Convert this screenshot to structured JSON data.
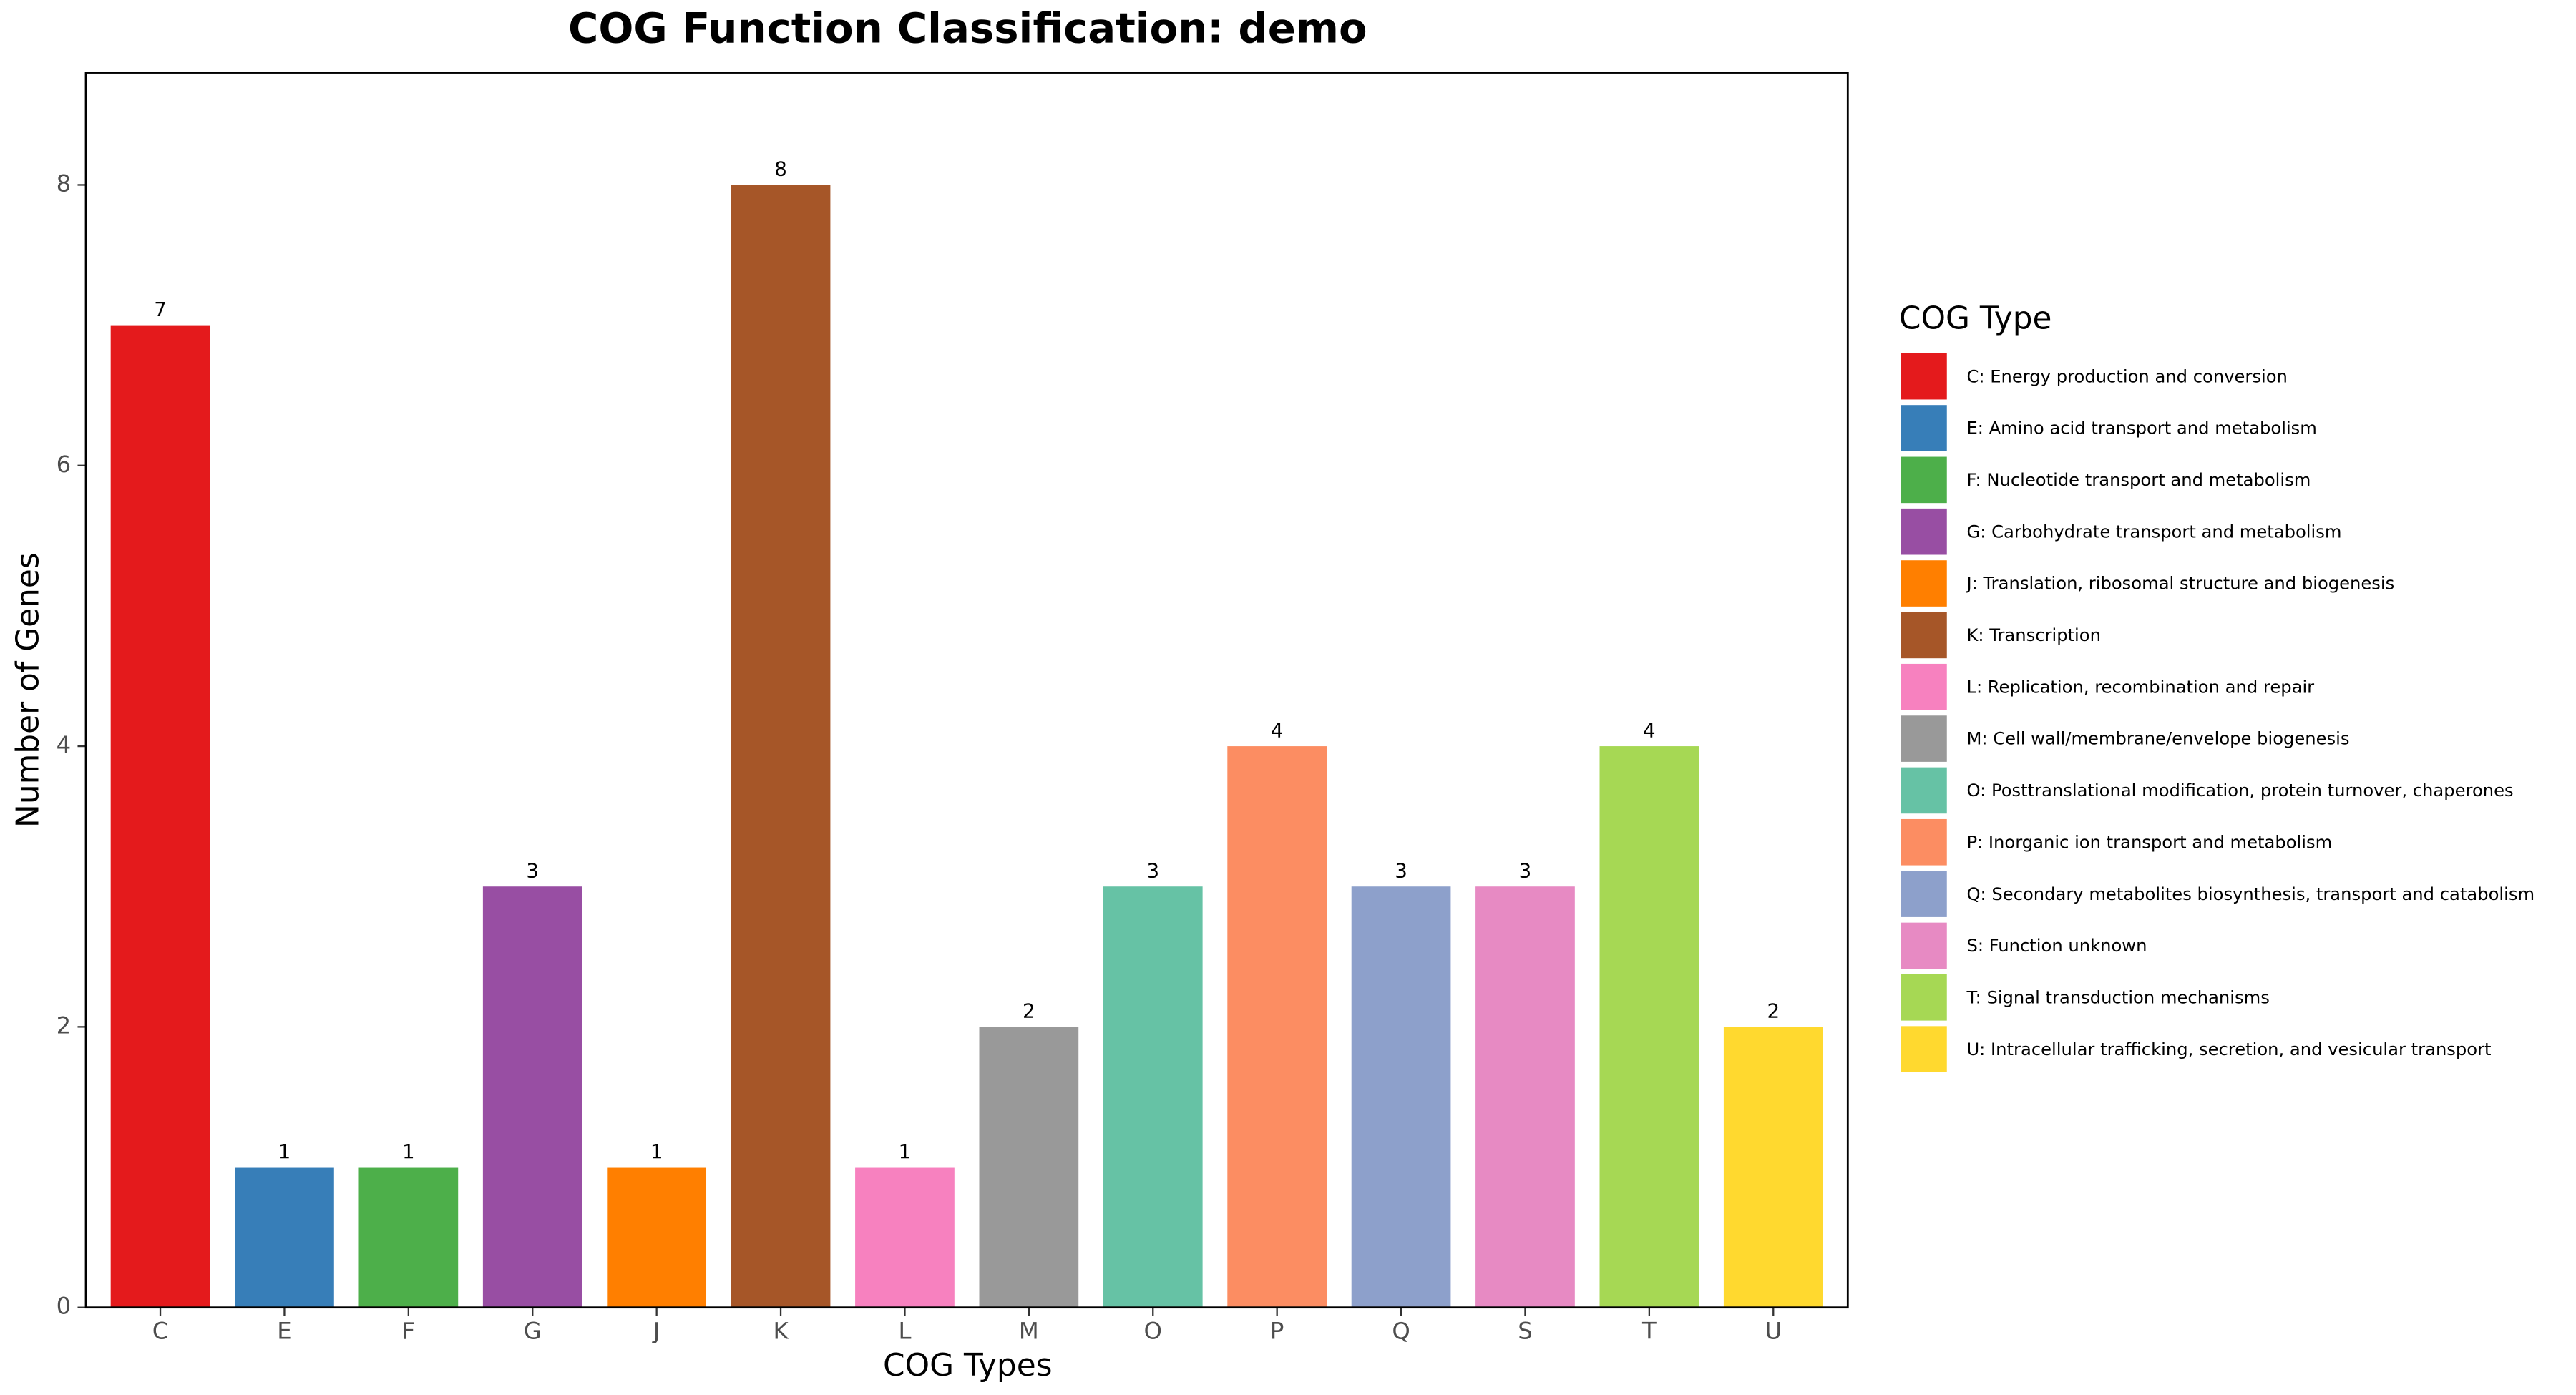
{
  "chart_data": {
    "type": "bar",
    "title": "COG Function Classification: demo",
    "x_label": "COG Types",
    "y_label": "Number of Genes",
    "legend_title": "COG Type",
    "categories": [
      "C",
      "E",
      "F",
      "G",
      "J",
      "K",
      "L",
      "M",
      "O",
      "P",
      "Q",
      "S",
      "T",
      "U"
    ],
    "values": [
      7,
      1,
      1,
      3,
      1,
      8,
      1,
      2,
      3,
      4,
      3,
      3,
      4,
      2
    ],
    "colors": [
      "#e41a1c",
      "#377eb8",
      "#4daf4a",
      "#984ea3",
      "#ff7f00",
      "#a65628",
      "#f781bf",
      "#999999",
      "#66c2a5",
      "#fc8d62",
      "#8da0cb",
      "#e78ac3",
      "#a6d854",
      "#ffd92f"
    ],
    "legend_labels": [
      "C: Energy production and conversion",
      "E: Amino acid transport and metabolism",
      "F: Nucleotide transport and metabolism",
      "G: Carbohydrate transport and metabolism",
      "J: Translation, ribosomal structure and biogenesis",
      "K: Transcription",
      "L: Replication, recombination and repair",
      "M: Cell wall/membrane/envelope biogenesis",
      "O: Posttranslational modification, protein turnover, chaperones",
      "P: Inorganic ion transport and metabolism",
      "Q: Secondary metabolites biosynthesis, transport and catabolism",
      "S: Function unknown",
      "T: Signal transduction mechanisms",
      "U: Intracellular trafficking, secretion, and vesicular transport"
    ],
    "ylim": [
      0,
      8.8
    ],
    "yticks": [
      0,
      2,
      4,
      6,
      8
    ]
  }
}
